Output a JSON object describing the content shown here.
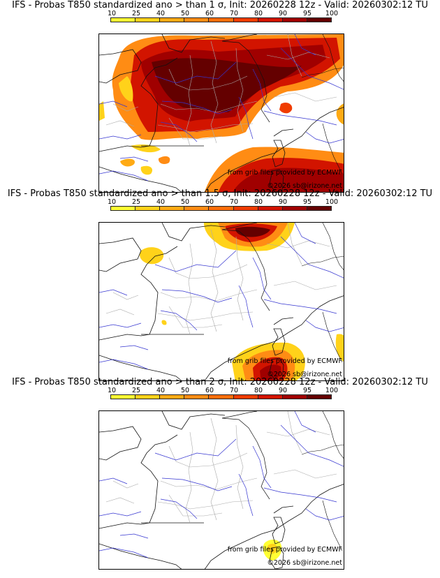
{
  "colorbar": {
    "ticks": [
      "10",
      "25",
      "40",
      "50",
      "60",
      "70",
      "80",
      "90",
      "95",
      "100"
    ],
    "colors": [
      "#ffff33",
      "#ffd21a",
      "#ffaa14",
      "#ff8c14",
      "#ff6e0a",
      "#f03c00",
      "#d21400",
      "#a00000",
      "#640000"
    ]
  },
  "panels": [
    {
      "title": "IFS - Probas T850  standardized ano > than 1 σ, Init: 20260228 12z - Valid: 20260302:12 TU"
    },
    {
      "title": "IFS - Probas T850  standardized ano > than 1.5 σ, Init: 20260228 12z - Valid: 20260302:12 TU"
    },
    {
      "title": "IFS - Probas T850  standardized ano > than 2 σ, Init: 20260228 12z - Valid: 20260302:12 TU"
    }
  ],
  "credit": {
    "source": "from grib files provided by ECMWF",
    "copyright": "©2026 sb@irizone.net"
  }
}
